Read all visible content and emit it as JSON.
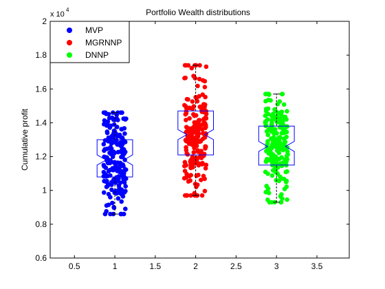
{
  "chart_data": {
    "type": "scatter",
    "title": "Portfolio Wealth distributions",
    "xlabel": "",
    "ylabel": "Cumulative profit",
    "y_exponent_label": "x 10",
    "y_exponent_power": "4",
    "xlim": [
      0.2,
      3.9
    ],
    "ylim": [
      0.6,
      2.0
    ],
    "x_ticks": [
      0.5,
      1,
      1.5,
      2,
      2.5,
      3,
      3.5
    ],
    "x_tick_labels": [
      "0.5",
      "1",
      "1.5",
      "2",
      "2.5",
      "3",
      "3.5"
    ],
    "y_ticks": [
      0.6,
      0.8,
      1.0,
      1.2,
      1.4,
      1.6,
      1.8,
      2.0
    ],
    "y_tick_labels": [
      "0.6",
      "0.8",
      "1",
      "1.2",
      "1.4",
      "1.6",
      "1.8",
      "2"
    ],
    "grid": false,
    "legend_position": "top-left",
    "series": [
      {
        "name": "MVP",
        "color": "#0000ff",
        "x_position": 1,
        "jitter_width": 0.14,
        "count": 200,
        "min": 0.86,
        "q1": 1.08,
        "median": 1.18,
        "q3": 1.3,
        "max": 1.46,
        "notch_low": 1.15,
        "notch_high": 1.21
      },
      {
        "name": "MGRNNP",
        "color": "#ff0000",
        "x_position": 2,
        "jitter_width": 0.14,
        "count": 200,
        "min": 0.97,
        "q1": 1.21,
        "median": 1.33,
        "q3": 1.47,
        "max": 1.74,
        "notch_low": 1.3,
        "notch_high": 1.36
      },
      {
        "name": "DNNP",
        "color": "#00ff00",
        "x_position": 3,
        "jitter_width": 0.14,
        "count": 200,
        "min": 0.93,
        "q1": 1.15,
        "median": 1.26,
        "q3": 1.38,
        "max": 1.57,
        "notch_low": 1.23,
        "notch_high": 1.29
      }
    ],
    "box_color": "#0000ff"
  }
}
